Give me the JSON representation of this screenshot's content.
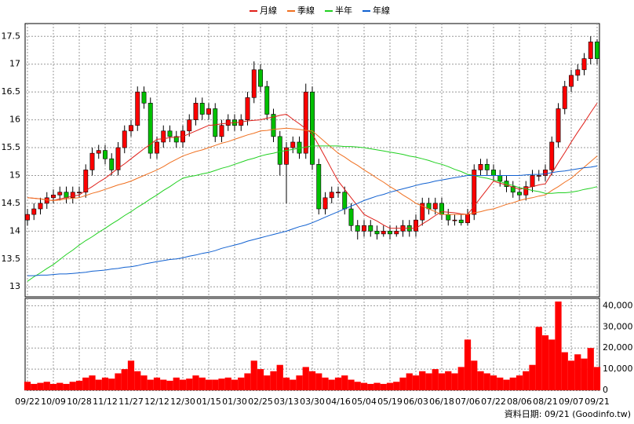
{
  "chart_data": {
    "type": "candlestick",
    "legend": "top",
    "grid": true,
    "up_color": "#ff0000",
    "down_color": "#00c000",
    "categories": [
      "09/22",
      null,
      null,
      null,
      "10/09",
      null,
      null,
      null,
      "10/28",
      null,
      null,
      null,
      "11/12",
      null,
      null,
      null,
      "11/27",
      null,
      null,
      null,
      "12/12",
      null,
      null,
      null,
      "12/30",
      null,
      null,
      null,
      "01/15",
      null,
      null,
      null,
      "01/30",
      null,
      null,
      null,
      "02/25",
      null,
      null,
      null,
      "03/13",
      null,
      null,
      null,
      "03/30",
      null,
      null,
      null,
      "04/16",
      null,
      null,
      null,
      "05/04",
      null,
      null,
      null,
      "05/19",
      null,
      null,
      null,
      "06/03",
      null,
      null,
      null,
      "06/18",
      null,
      null,
      null,
      "07/06",
      null,
      null,
      null,
      "07/22",
      null,
      null,
      null,
      "08/06",
      null,
      null,
      null,
      "08/21",
      null,
      null,
      null,
      "09/07",
      null,
      null,
      null,
      "09/21"
    ],
    "open": [
      14.2,
      14.3,
      14.4,
      14.5,
      14.6,
      14.65,
      14.7,
      14.6,
      14.7,
      14.7,
      15.1,
      15.4,
      15.45,
      15.3,
      15.1,
      15.5,
      15.8,
      15.9,
      16.5,
      16.3,
      15.4,
      15.6,
      15.8,
      15.7,
      15.6,
      15.8,
      16.0,
      16.3,
      16.1,
      16.2,
      15.7,
      15.9,
      16.0,
      15.9,
      16.0,
      16.4,
      16.9,
      16.6,
      16.1,
      15.7,
      15.2,
      15.5,
      15.6,
      15.4,
      16.5,
      15.2,
      14.4,
      14.6,
      14.7,
      14.7,
      14.4,
      14.1,
      14.0,
      14.1,
      14.0,
      13.95,
      14.0,
      13.95,
      14.0,
      14.1,
      14.0,
      14.2,
      14.5,
      14.4,
      14.5,
      14.3,
      14.2,
      14.2,
      14.15,
      14.3,
      15.1,
      15.2,
      15.1,
      15.0,
      14.9,
      14.8,
      14.7,
      14.65,
      14.8,
      15.0,
      15.0,
      15.1,
      15.6,
      16.2,
      16.6,
      16.8,
      16.9,
      17.1,
      17.4
    ],
    "high": [
      14.4,
      14.5,
      14.6,
      14.7,
      14.75,
      14.8,
      14.8,
      14.8,
      14.8,
      15.2,
      15.5,
      15.55,
      15.55,
      15.4,
      15.6,
      15.9,
      16.0,
      16.6,
      16.6,
      16.4,
      15.7,
      15.9,
      15.9,
      15.8,
      15.9,
      16.1,
      16.4,
      16.4,
      16.3,
      16.3,
      16.0,
      16.1,
      16.1,
      16.1,
      16.5,
      17.05,
      17.0,
      16.7,
      16.2,
      15.8,
      15.6,
      15.7,
      15.7,
      16.65,
      16.6,
      15.3,
      14.7,
      14.8,
      14.8,
      14.8,
      14.5,
      14.2,
      14.2,
      14.2,
      14.1,
      14.1,
      14.1,
      14.1,
      14.2,
      14.2,
      14.3,
      14.6,
      14.6,
      14.6,
      14.6,
      14.4,
      14.3,
      14.3,
      14.4,
      15.2,
      15.3,
      15.3,
      15.2,
      15.1,
      15.0,
      14.9,
      14.8,
      14.9,
      15.1,
      15.1,
      15.2,
      15.7,
      16.3,
      16.7,
      16.9,
      17.0,
      17.2,
      17.5,
      17.45
    ],
    "low": [
      14.1,
      14.2,
      14.3,
      14.4,
      14.5,
      14.55,
      14.5,
      14.5,
      14.6,
      14.6,
      15.0,
      15.3,
      15.2,
      15.0,
      15.0,
      15.4,
      15.7,
      15.8,
      16.2,
      15.3,
      15.3,
      15.5,
      15.6,
      15.5,
      15.5,
      15.7,
      15.9,
      16.0,
      16.0,
      15.6,
      15.6,
      15.8,
      15.8,
      15.8,
      15.9,
      16.3,
      16.5,
      16.0,
      15.6,
      15.0,
      14.5,
      15.4,
      15.3,
      15.3,
      15.1,
      14.3,
      14.3,
      14.5,
      14.6,
      14.3,
      14.0,
      13.85,
      13.9,
      13.9,
      13.85,
      13.9,
      13.85,
      13.9,
      13.9,
      13.9,
      13.9,
      14.1,
      14.3,
      14.3,
      14.2,
      14.1,
      14.1,
      14.1,
      14.1,
      14.2,
      15.0,
      15.0,
      14.9,
      14.8,
      14.7,
      14.6,
      14.55,
      14.55,
      14.7,
      14.9,
      14.9,
      15.0,
      15.5,
      16.1,
      16.5,
      16.7,
      16.8,
      17.0,
      17.0
    ],
    "close": [
      14.3,
      14.4,
      14.5,
      14.6,
      14.65,
      14.7,
      14.6,
      14.7,
      14.7,
      15.1,
      15.4,
      15.45,
      15.3,
      15.1,
      15.5,
      15.8,
      15.9,
      16.5,
      16.3,
      15.4,
      15.6,
      15.8,
      15.7,
      15.6,
      15.8,
      16.0,
      16.3,
      16.1,
      16.2,
      15.7,
      15.9,
      16.0,
      15.9,
      16.0,
      16.4,
      16.9,
      16.6,
      16.1,
      15.7,
      15.2,
      15.5,
      15.6,
      15.4,
      16.5,
      15.2,
      14.4,
      14.6,
      14.7,
      14.7,
      14.4,
      14.1,
      14.0,
      14.1,
      14.0,
      13.95,
      14.0,
      13.95,
      14.0,
      14.1,
      14.0,
      14.2,
      14.5,
      14.4,
      14.5,
      14.3,
      14.2,
      14.2,
      14.15,
      14.3,
      15.1,
      15.2,
      15.1,
      15.0,
      14.9,
      14.8,
      14.7,
      14.65,
      14.8,
      15.0,
      15.0,
      15.1,
      15.6,
      16.2,
      16.6,
      16.8,
      16.9,
      17.1,
      17.4,
      17.1
    ],
    "series": [
      {
        "name": "月線",
        "color": "#e0201a",
        "values": [
          14.6,
          14.59,
          14.58,
          14.56,
          14.55,
          14.58,
          14.6,
          14.63,
          14.65,
          14.73,
          14.8,
          14.88,
          14.95,
          15.04,
          15.13,
          15.21,
          15.3,
          15.39,
          15.48,
          15.56,
          15.65,
          15.66,
          15.68,
          15.69,
          15.7,
          15.75,
          15.8,
          15.85,
          15.9,
          15.91,
          15.93,
          15.94,
          15.95,
          15.96,
          15.98,
          15.99,
          16.0,
          16.03,
          16.05,
          16.08,
          16.1,
          16.01,
          15.93,
          15.84,
          15.75,
          15.54,
          15.33,
          15.11,
          14.9,
          14.75,
          14.6,
          14.45,
          14.3,
          14.24,
          14.18,
          14.11,
          14.05,
          14.05,
          14.05,
          14.05,
          14.05,
          14.13,
          14.2,
          14.28,
          14.35,
          14.34,
          14.33,
          14.31,
          14.3,
          14.45,
          14.6,
          14.75,
          14.9,
          14.86,
          14.83,
          14.79,
          14.75,
          14.78,
          14.8,
          14.83,
          14.85,
          15.04,
          15.23,
          15.41,
          15.6,
          15.78,
          15.95,
          16.13,
          16.3
        ]
      },
      {
        "name": "季線",
        "color": "#f07020",
        "values": [
          14.6,
          14.59,
          14.58,
          14.56,
          14.55,
          14.56,
          14.58,
          14.59,
          14.6,
          14.64,
          14.68,
          14.71,
          14.75,
          14.79,
          14.83,
          14.86,
          14.9,
          14.95,
          15.0,
          15.05,
          15.1,
          15.16,
          15.23,
          15.29,
          15.35,
          15.39,
          15.43,
          15.46,
          15.5,
          15.54,
          15.58,
          15.61,
          15.65,
          15.69,
          15.73,
          15.76,
          15.8,
          15.81,
          15.83,
          15.84,
          15.85,
          15.84,
          15.83,
          15.81,
          15.8,
          15.7,
          15.6,
          15.5,
          15.4,
          15.33,
          15.25,
          15.18,
          15.1,
          15.03,
          14.95,
          14.88,
          14.8,
          14.73,
          14.65,
          14.58,
          14.5,
          14.45,
          14.4,
          14.35,
          14.3,
          14.3,
          14.3,
          14.3,
          14.3,
          14.33,
          14.35,
          14.38,
          14.4,
          14.44,
          14.48,
          14.51,
          14.55,
          14.58,
          14.6,
          14.63,
          14.65,
          14.73,
          14.8,
          14.88,
          14.95,
          15.05,
          15.15,
          15.25,
          15.35
        ]
      },
      {
        "name": "半年",
        "color": "#20d020",
        "values": [
          13.1,
          13.18,
          13.25,
          13.33,
          13.4,
          13.49,
          13.58,
          13.66,
          13.75,
          13.83,
          13.9,
          13.98,
          14.05,
          14.13,
          14.2,
          14.28,
          14.35,
          14.43,
          14.5,
          14.58,
          14.65,
          14.73,
          14.8,
          14.88,
          14.95,
          14.98,
          15.0,
          15.03,
          15.05,
          15.09,
          15.13,
          15.16,
          15.2,
          15.24,
          15.28,
          15.31,
          15.35,
          15.38,
          15.4,
          15.43,
          15.45,
          15.47,
          15.49,
          15.51,
          15.53,
          15.53,
          15.53,
          15.53,
          15.53,
          15.52,
          15.52,
          15.51,
          15.5,
          15.48,
          15.46,
          15.44,
          15.42,
          15.4,
          15.38,
          15.35,
          15.33,
          15.3,
          15.27,
          15.23,
          15.2,
          15.16,
          15.11,
          15.07,
          15.02,
          15.0,
          14.97,
          14.95,
          14.92,
          14.89,
          14.85,
          14.82,
          14.78,
          14.76,
          14.73,
          14.71,
          14.68,
          14.68,
          14.69,
          14.69,
          14.7,
          14.72,
          14.75,
          14.77,
          14.8
        ]
      },
      {
        "name": "年線",
        "color": "#1060d0",
        "values": [
          13.2,
          13.2,
          13.21,
          13.21,
          13.22,
          13.23,
          13.23,
          13.24,
          13.25,
          13.26,
          13.28,
          13.29,
          13.3,
          13.32,
          13.33,
          13.35,
          13.36,
          13.38,
          13.41,
          13.43,
          13.45,
          13.47,
          13.49,
          13.5,
          13.52,
          13.55,
          13.57,
          13.6,
          13.62,
          13.65,
          13.69,
          13.72,
          13.75,
          13.78,
          13.82,
          13.85,
          13.88,
          13.91,
          13.94,
          13.97,
          14.0,
          14.04,
          14.08,
          14.11,
          14.15,
          14.2,
          14.25,
          14.3,
          14.35,
          14.4,
          14.45,
          14.5,
          14.55,
          14.59,
          14.63,
          14.66,
          14.7,
          14.73,
          14.76,
          14.79,
          14.82,
          14.85,
          14.87,
          14.9,
          14.92,
          14.94,
          14.96,
          14.98,
          15.0,
          15.0,
          15.0,
          15.0,
          15.0,
          15.0,
          15.0,
          15.0,
          15.0,
          15.01,
          15.02,
          15.02,
          15.03,
          15.05,
          15.07,
          15.08,
          15.1,
          15.12,
          15.14,
          15.15,
          15.17
        ]
      }
    ],
    "volume": {
      "color": "#ff0000",
      "values": [
        4000,
        3000,
        3500,
        4000,
        3000,
        3500,
        3000,
        4000,
        4500,
        6000,
        7000,
        5000,
        6000,
        5500,
        8000,
        10000,
        14000,
        9000,
        7000,
        5000,
        6000,
        5000,
        4500,
        6000,
        5000,
        5500,
        7000,
        6000,
        5000,
        5000,
        5500,
        6000,
        5000,
        6000,
        8000,
        14000,
        10000,
        7000,
        9000,
        12000,
        6000,
        5000,
        7000,
        11000,
        9000,
        8000,
        6000,
        5000,
        6000,
        7000,
        5000,
        4000,
        3500,
        3000,
        3500,
        3000,
        3500,
        4000,
        6000,
        8000,
        7000,
        9000,
        8000,
        10000,
        8000,
        9000,
        8000,
        11000,
        24000,
        14000,
        9000,
        8000,
        7000,
        6000,
        5000,
        6000,
        7000,
        9000,
        12000,
        30000,
        26000,
        24000,
        42000,
        18000,
        14000,
        17000,
        15000,
        20000,
        11000
      ]
    },
    "ylim": [
      12.82,
      17.73
    ],
    "yticks": [
      13,
      13.5,
      14,
      14.5,
      15,
      15.5,
      16,
      16.5,
      17,
      17.5
    ],
    "y2lim": [
      0,
      43500
    ],
    "y2ticks": [
      0,
      {
        "value": 10000,
        "label": "10,000"
      },
      {
        "value": 20000,
        "label": "20,000"
      },
      {
        "value": 30000,
        "label": "30,000"
      },
      {
        "value": 40000,
        "label": "40,000"
      }
    ],
    "footer": "資料日期: 09/21 (Goodinfo.tw)"
  }
}
